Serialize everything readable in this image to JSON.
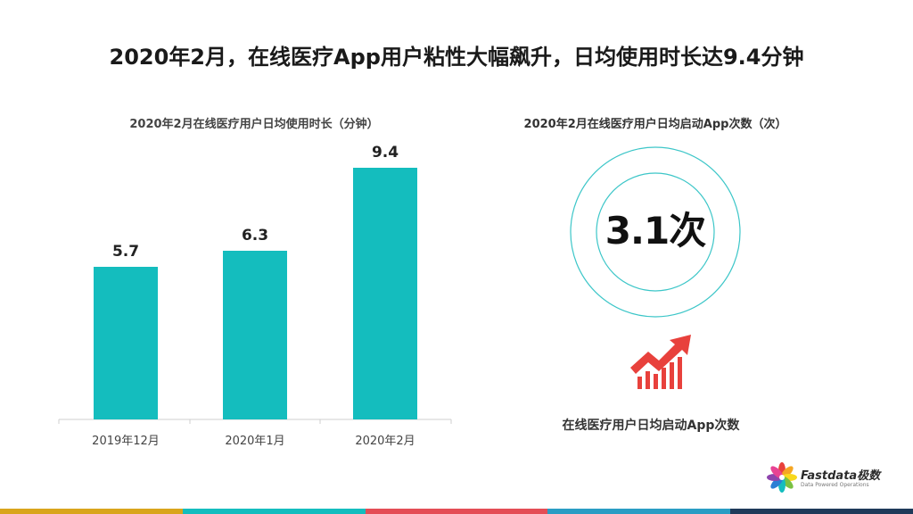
{
  "title": "2020年2月，在线医疗App用户粘性大幅飙升，日均使用时长达9.4分钟",
  "left_chart_title": "2020年2月在线医疗用户日均使用时长（分钟）",
  "right_title": "2020年2月在线医疗用户日均启动App次数（次）",
  "ring_value": "3.1次",
  "right_caption": "在线医疗用户日均启动App次数",
  "brand": {
    "name": "Fastdata极数",
    "tagline": "Data Powered Operations"
  },
  "colors": {
    "bar": "#14bdbe",
    "ring": "#3cc6c8",
    "trend": "#e8413c",
    "footer": [
      "#d9a51c",
      "#14bdbe",
      "#e44d56",
      "#2a9dc4",
      "#1f3a5a"
    ]
  },
  "chart_data": {
    "type": "bar",
    "categories": [
      "2019年12月",
      "2020年1月",
      "2020年2月"
    ],
    "values": [
      5.7,
      6.3,
      9.4
    ],
    "value_labels": [
      "5.7",
      "6.3",
      "9.4"
    ],
    "title": "2020年2月在线医疗用户日均使用时长（分钟）",
    "ylim": [
      0,
      10
    ],
    "grid": false,
    "legend": "none"
  }
}
